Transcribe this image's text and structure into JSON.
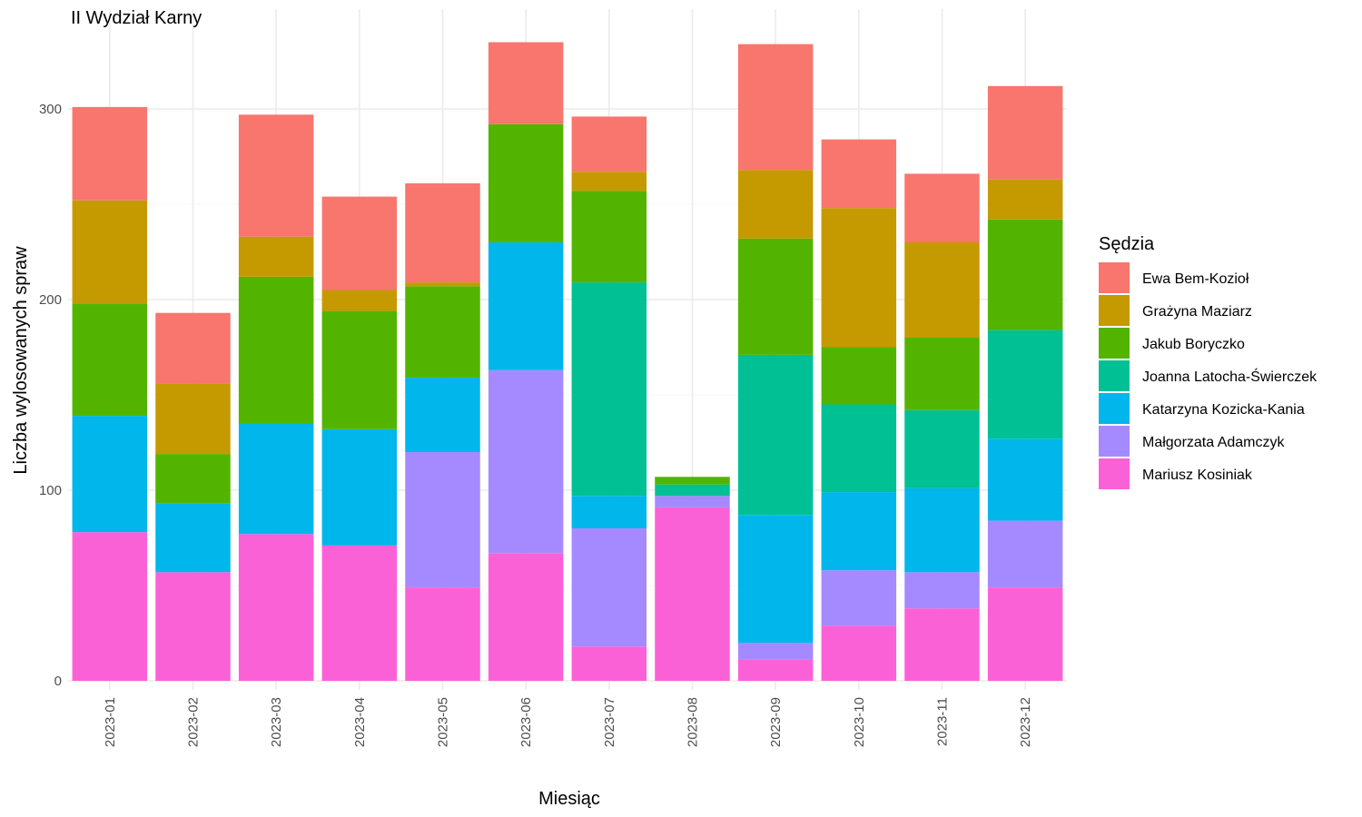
{
  "chart_data": {
    "type": "bar",
    "stacked": true,
    "title": "II Wydział Karny",
    "xlabel": "Miesiąc",
    "ylabel": "Liczba wylosowanych spraw",
    "ylim": [
      0,
      335
    ],
    "yticks": [
      0,
      100,
      200,
      300
    ],
    "grid": true,
    "legend_title": "Sędzia",
    "legend_position": "right",
    "categories": [
      "2023-01",
      "2023-02",
      "2023-03",
      "2023-04",
      "2023-05",
      "2023-06",
      "2023-07",
      "2023-08",
      "2023-09",
      "2023-10",
      "2023-11",
      "2023-12"
    ],
    "series": [
      {
        "name": "Ewa Bem-Kozioł",
        "color": "#F8766D",
        "values": [
          49,
          37,
          64,
          49,
          52,
          43,
          29,
          0,
          66,
          36,
          36,
          49
        ]
      },
      {
        "name": "Grażyna Maziarz",
        "color": "#C49A00",
        "values": [
          54,
          37,
          21,
          11,
          2,
          0,
          10,
          0,
          36,
          73,
          50,
          21
        ]
      },
      {
        "name": "Jakub Boryczko",
        "color": "#53B400",
        "values": [
          59,
          26,
          77,
          62,
          48,
          62,
          48,
          4,
          61,
          30,
          38,
          58
        ]
      },
      {
        "name": "Joanna Latocha-Świerczek",
        "color": "#00C094",
        "values": [
          0,
          0,
          0,
          0,
          0,
          0,
          112,
          6,
          84,
          46,
          41,
          57
        ]
      },
      {
        "name": "Katarzyna Kozicka-Kania",
        "color": "#00B6EB",
        "values": [
          61,
          36,
          58,
          61,
          39,
          67,
          17,
          0,
          67,
          41,
          44,
          43
        ]
      },
      {
        "name": "Małgorzata Adamczyk",
        "color": "#A58AFF",
        "values": [
          0,
          0,
          0,
          0,
          71,
          96,
          62,
          6,
          9,
          29,
          19,
          35
        ]
      },
      {
        "name": "Mariusz Kosiniak",
        "color": "#FB61D7",
        "values": [
          78,
          57,
          77,
          71,
          49,
          67,
          18,
          91,
          11,
          29,
          38,
          49
        ]
      }
    ]
  }
}
